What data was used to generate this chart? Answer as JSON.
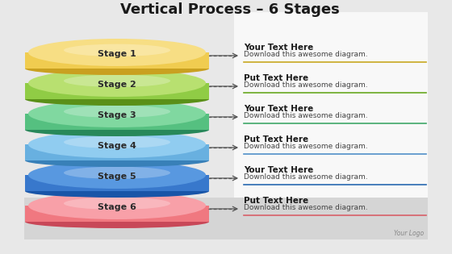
{
  "title": "Vertical Process – 6 Stages",
  "bg_color": "#e8e8e8",
  "white_panel_color": "#f5f5f5",
  "gray_panel_color": "#d8d8d8",
  "stages": [
    {
      "label": "Stage 1",
      "color_top": "#f7de84",
      "color_mid": "#f0cc50",
      "color_shadow": "#c9a020",
      "line_color": "#c8a820"
    },
    {
      "label": "Stage 2",
      "color_top": "#b8e070",
      "color_mid": "#90cc45",
      "color_shadow": "#5a9018",
      "line_color": "#68a820"
    },
    {
      "label": "Stage 3",
      "color_top": "#80d8a0",
      "color_mid": "#55c080",
      "color_shadow": "#28885a",
      "line_color": "#40a868"
    },
    {
      "label": "Stage 4",
      "color_top": "#90ccf0",
      "color_mid": "#68b0e0",
      "color_shadow": "#3880b8",
      "line_color": "#5090c8"
    },
    {
      "label": "Stage 5",
      "color_top": "#5898e0",
      "color_mid": "#3878cc",
      "color_shadow": "#1855a8",
      "line_color": "#2868b0"
    },
    {
      "label": "Stage 6",
      "color_top": "#f8a0a8",
      "color_mid": "#f07880",
      "color_shadow": "#c84858",
      "line_color": "#d86068"
    }
  ],
  "text_headers": [
    "Your Text Here",
    "Put Text Here",
    "Your Text Here",
    "Put Text Here",
    "Your Text Here",
    "Put Text Here"
  ],
  "text_body": "Download this awesome diagram.",
  "logo_text": "Your Logo",
  "title_fontsize": 13,
  "stage_label_fontsize": 8,
  "header_fontsize": 7.5,
  "body_fontsize": 6.5
}
